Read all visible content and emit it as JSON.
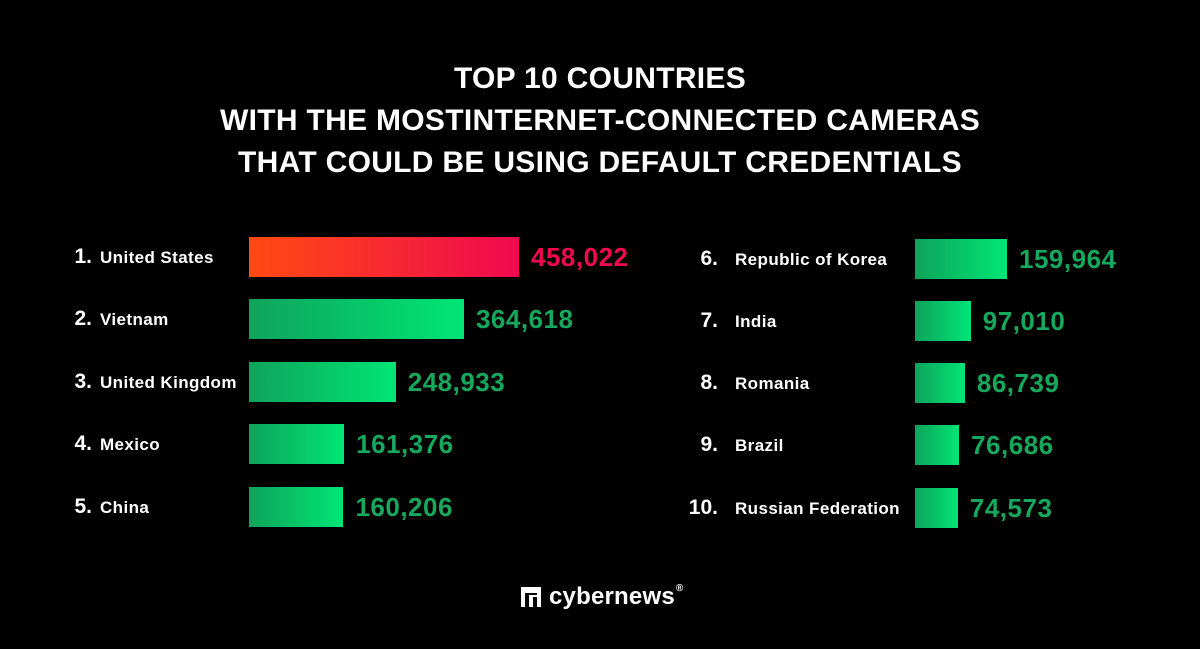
{
  "chart_data": {
    "type": "bar",
    "orientation": "horizontal",
    "title_lines": [
      "TOP 10 COUNTRIES",
      "WITH THE MOSTINTERNET-CONNECTED CAMERAS",
      "THAT COULD BE USING DEFAULT CREDENTIALS"
    ],
    "categories": [
      "United States",
      "Vietnam",
      "United Kingdom",
      "Mexico",
      "China",
      "Republic of Korea",
      "India",
      "Romania",
      "Brazil",
      "Russian Federation"
    ],
    "ranks": [
      "1.",
      "2.",
      "3.",
      "4.",
      "5.",
      "6.",
      "7.",
      "8.",
      "9.",
      "10."
    ],
    "values": [
      458022,
      364618,
      248933,
      161376,
      160206,
      159964,
      97010,
      86739,
      76686,
      74573
    ],
    "value_labels": [
      "458,022",
      "364,618",
      "248,933",
      "161,376",
      "160,206",
      "159,964",
      "97,010",
      "86,739",
      "76,686",
      "74,573"
    ],
    "xlabel": "",
    "ylabel": "",
    "grid": false
  },
  "colors": {
    "highlight_start": "#ff4a12",
    "highlight_end": "#f0094f",
    "bar_start": "#0fa35a",
    "bar_end": "#00e676",
    "value_green": "#16a85c",
    "value_red": "#f0094f"
  },
  "brand": {
    "name": "cybernews",
    "reg": "®"
  }
}
